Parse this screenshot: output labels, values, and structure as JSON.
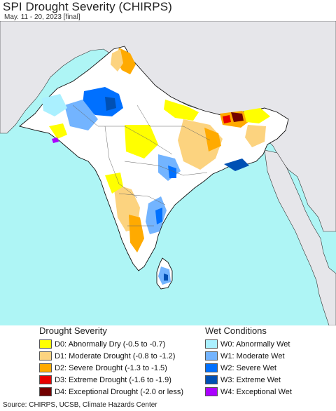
{
  "header": {
    "title": "SPI Drought Severity (CHIRPS)",
    "subtitle": "May. 11 - 20, 2023 [final]"
  },
  "map": {
    "colors": {
      "ocean": "#aef5f5",
      "land_outside": "#e6e6ea",
      "land_normal": "#ffffff",
      "border": "#222222",
      "coast": "#111111"
    }
  },
  "legend": {
    "drought": {
      "heading": "Drought Severity",
      "items": [
        {
          "code": "D0",
          "label": "D0: Abnormally Dry (-0.5 to -0.7)",
          "color": "#ffff00"
        },
        {
          "code": "D1",
          "label": "D1: Moderate Drought (-0.8 to -1.2)",
          "color": "#fcd37f"
        },
        {
          "code": "D2",
          "label": "D2: Severe Drought (-1.3 to -1.5)",
          "color": "#ffaa00"
        },
        {
          "code": "D3",
          "label": "D3: Extreme Drought (-1.6 to -1.9)",
          "color": "#e60000"
        },
        {
          "code": "D4",
          "label": "D4: Exceptional Drought (-2.0 or less)",
          "color": "#730000"
        }
      ]
    },
    "wet": {
      "heading": "Wet Conditions",
      "items": [
        {
          "code": "W0",
          "label": "W0: Abnormally Wet",
          "color": "#aaf0ff"
        },
        {
          "code": "W1",
          "label": "W1: Moderate Wet",
          "color": "#73b4ff"
        },
        {
          "code": "W2",
          "label": "W2: Severe Wet",
          "color": "#0070ff"
        },
        {
          "code": "W3",
          "label": "W3: Extreme Wet",
          "color": "#0050b4"
        },
        {
          "code": "W4",
          "label": "W4: Exceptional Wet",
          "color": "#aa00ff"
        }
      ]
    }
  },
  "footer": {
    "source": "Source: CHIRPS, UCSB, Climate Hazards Center"
  }
}
